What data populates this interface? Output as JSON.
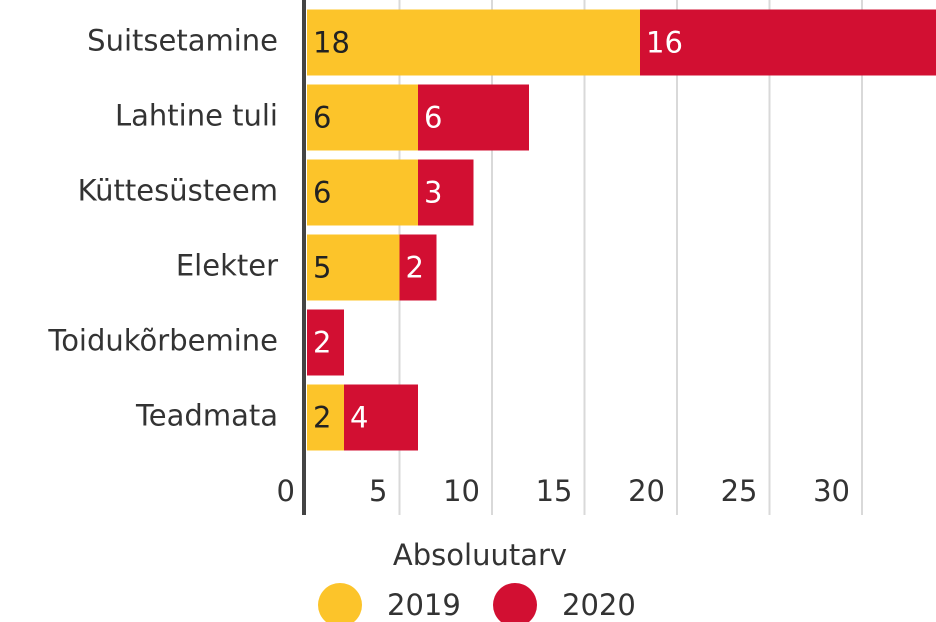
{
  "chart_data": {
    "type": "stacked_barh",
    "categories": [
      "Suitsetamine",
      "Lahtine tuli",
      "Küttesüsteem",
      "Elekter",
      "Toidukõrbemine",
      "Teadmata"
    ],
    "series": [
      {
        "name": "2019",
        "color": "#fcc42a",
        "values": [
          18,
          6,
          6,
          5,
          null,
          2
        ]
      },
      {
        "name": "2020",
        "color": "#d20f32",
        "values": [
          16,
          6,
          3,
          2,
          2,
          4
        ]
      }
    ],
    "xlabel": "Absoluutarv",
    "xlim": [
      0,
      34
    ],
    "xticks": [
      0,
      5,
      10,
      15,
      20,
      25,
      30
    ],
    "grid": true
  }
}
